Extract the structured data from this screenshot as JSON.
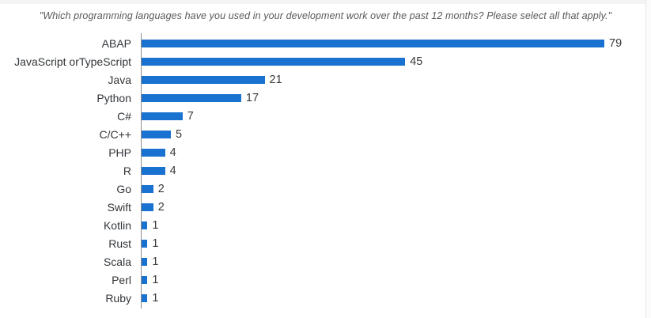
{
  "chart_data": {
    "type": "bar",
    "orientation": "horizontal",
    "title": "\"Which programming languages have you used in your development work over the past 12 months? Please select all that apply.\"",
    "categories": [
      "ABAP",
      "JavaScript orTypeScript",
      "Java",
      "Python",
      "C#",
      "C/C++",
      "PHP",
      "R",
      "Go",
      "Swift",
      "Kotlin",
      "Rust",
      "Scala",
      "Perl",
      "Ruby"
    ],
    "values": [
      79,
      45,
      21,
      17,
      7,
      5,
      4,
      4,
      2,
      2,
      1,
      1,
      1,
      1,
      1
    ],
    "xlim": [
      0,
      79
    ],
    "value_labels_shown": true,
    "grid": false,
    "legend": false,
    "bar_color": "#1a72d0",
    "axis_color": "#8d8d8d",
    "label_color": "#32363a",
    "value_color": "#3a3a3a",
    "title_color": "#58595b"
  }
}
